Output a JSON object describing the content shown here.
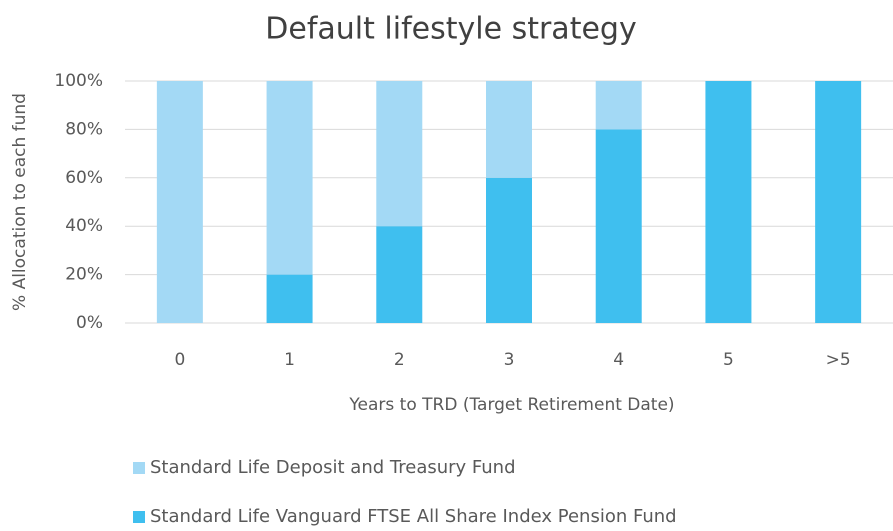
{
  "chart_data": {
    "type": "stacked_bar",
    "title": "Default lifestyle strategy",
    "x_label": "Years to TRD (Target Retirement Date)",
    "y_label": "% Allocation to each fund",
    "categories": [
      "0",
      "1",
      "2",
      "3",
      "4",
      "5",
      ">5"
    ],
    "series": [
      {
        "name": "Standard Life Deposit and Treasury Fund",
        "color": "#a3d9f5",
        "values": [
          100,
          80,
          60,
          40,
          20,
          0,
          0
        ]
      },
      {
        "name": "Standard Life Vanguard FTSE All Share Index Pension Fund",
        "color": "#3fbfef",
        "values": [
          0,
          20,
          40,
          60,
          80,
          100,
          100
        ]
      }
    ],
    "ylim": [
      0,
      100
    ],
    "yticks": [
      {
        "value": 0,
        "label": "0%"
      },
      {
        "value": 20,
        "label": "20%"
      },
      {
        "value": 40,
        "label": "40%"
      },
      {
        "value": 60,
        "label": "60%"
      },
      {
        "value": 80,
        "label": "80%"
      },
      {
        "value": 100,
        "label": "100%"
      }
    ],
    "grid": true,
    "legend": "bottom"
  }
}
